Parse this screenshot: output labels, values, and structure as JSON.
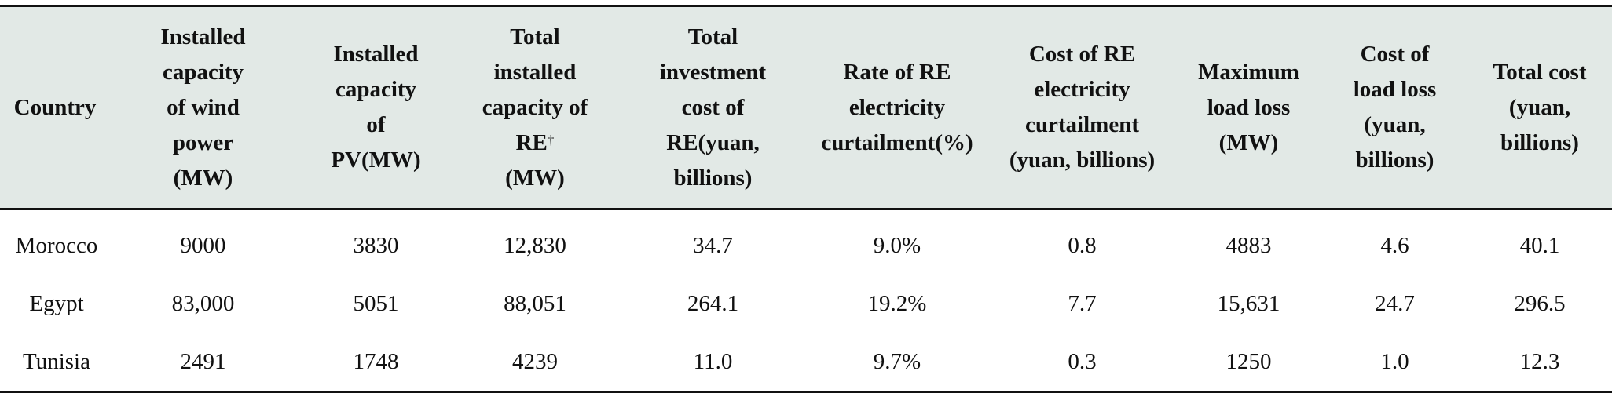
{
  "table": {
    "headers": [
      {
        "text": "Country",
        "sup": ""
      },
      {
        "text": "Installed capacity of wind power (MW)",
        "sup": ""
      },
      {
        "text": "Installed capacity of PV(MW)",
        "sup": ""
      },
      {
        "text": "Total installed capacity of RE",
        "sup": "†",
        "suffix": "(MW)"
      },
      {
        "text": "Total investment cost of RE(yuan, billions)",
        "sup": ""
      },
      {
        "text": "Rate of RE electricity curtailment(%)",
        "sup": ""
      },
      {
        "text": "Cost of RE electricity curtailment (yuan, billions)",
        "sup": ""
      },
      {
        "text": "Maximum load loss (MW)",
        "sup": ""
      },
      {
        "text": "Cost of load loss (yuan, billions)",
        "sup": ""
      },
      {
        "text": "Total cost (yuan, billions)",
        "sup": ""
      }
    ],
    "rows": [
      [
        "Morocco",
        "9000",
        "3830",
        "12,830",
        "34.7",
        "9.0%",
        "0.8",
        "4883",
        "4.6",
        "40.1"
      ],
      [
        "Egypt",
        "83,000",
        "5051",
        "88,051",
        "264.1",
        "19.2%",
        "7.7",
        "15,631",
        "24.7",
        "296.5"
      ],
      [
        "Tunisia",
        "2491",
        "1748",
        "4239",
        "11.0",
        "9.7%",
        "0.3",
        "1250",
        "1.0",
        "12.3"
      ]
    ]
  }
}
